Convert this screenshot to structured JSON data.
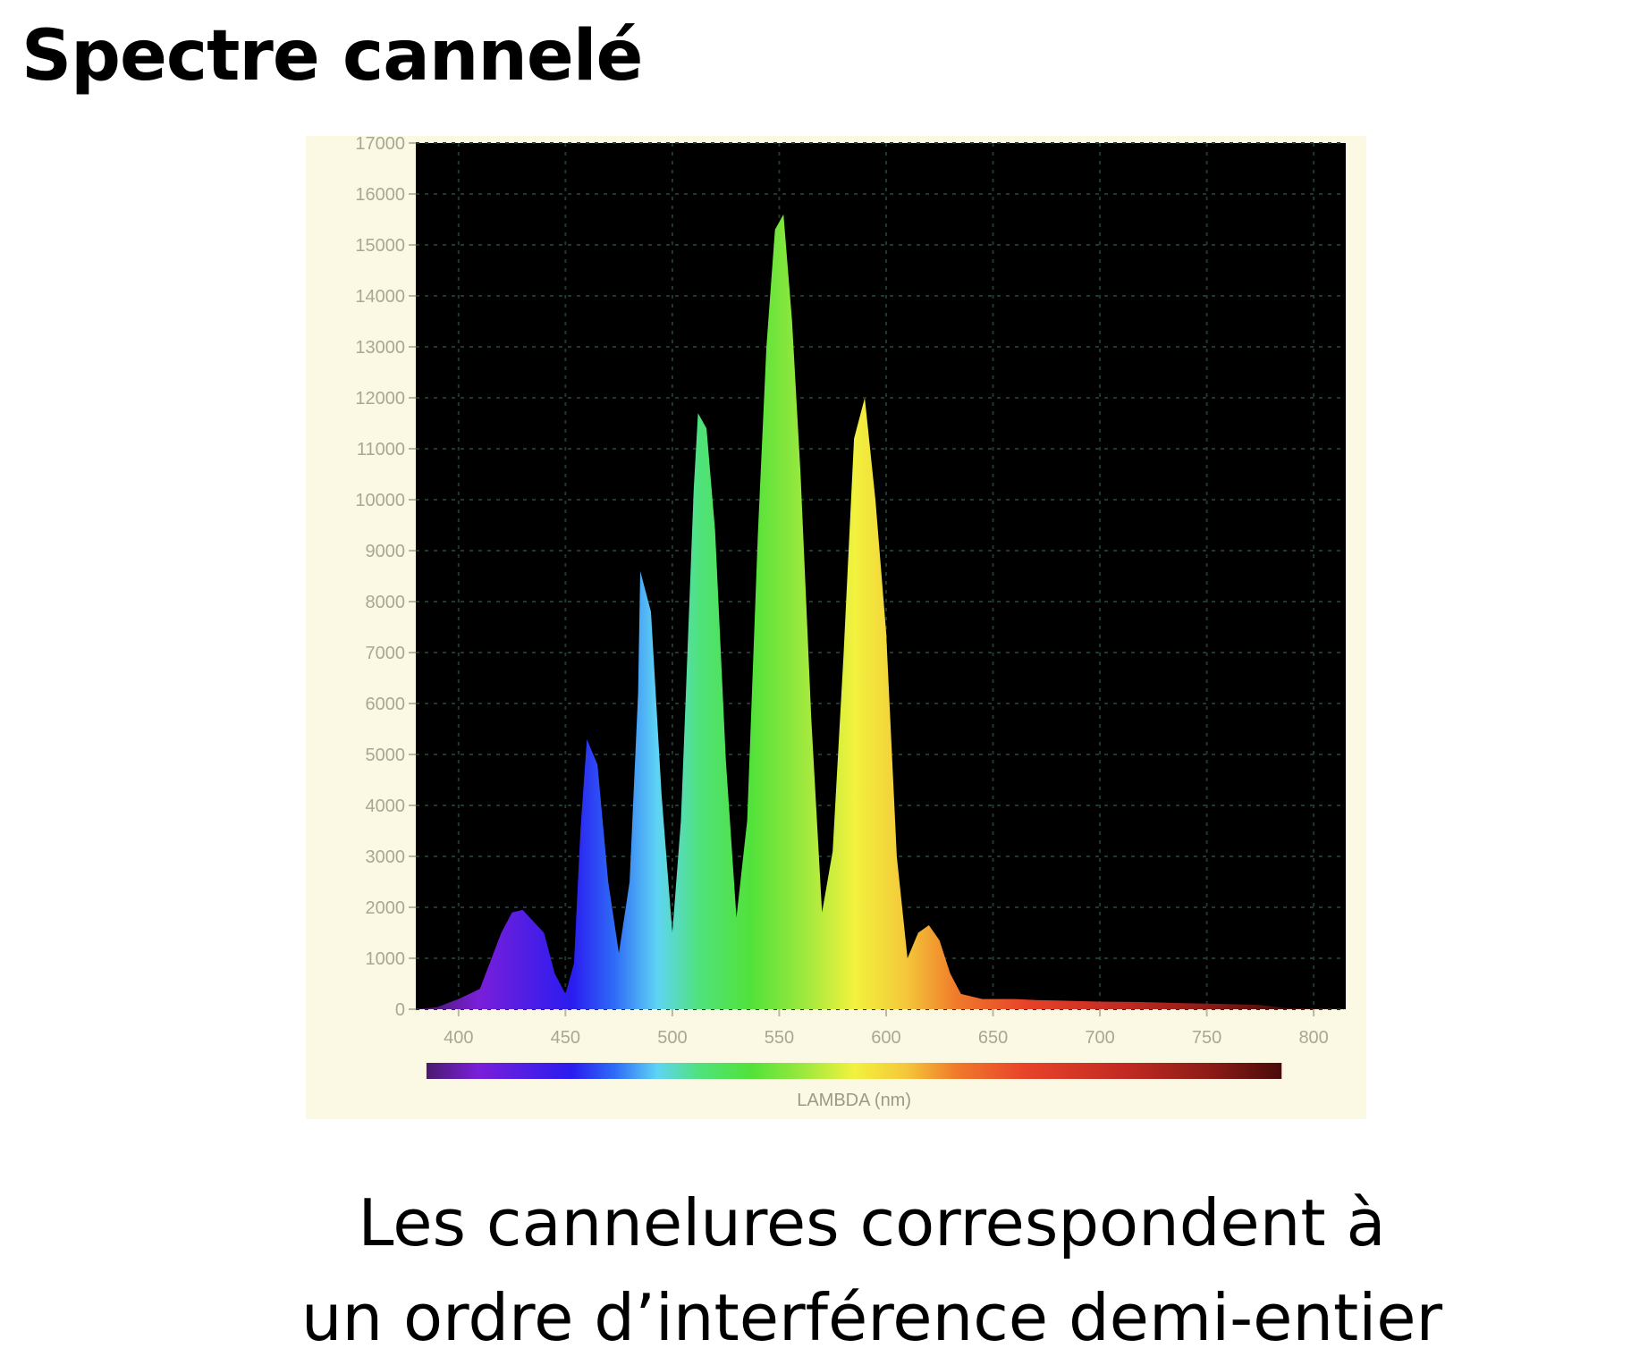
{
  "slide": {
    "title": "Spectre cannelé",
    "caption_line1": "Les cannelures correspondent à",
    "caption_line2": "un ordre d’interférence demi-entier"
  },
  "chart_data": {
    "type": "area",
    "title": "",
    "xlabel": "LAMBDA (nm)",
    "ylabel": "",
    "xlim": [
      380,
      815
    ],
    "ylim": [
      0,
      17000
    ],
    "x_ticks": [
      400,
      450,
      500,
      550,
      600,
      650,
      700,
      750,
      800
    ],
    "y_ticks": [
      0,
      1000,
      2000,
      3000,
      4000,
      5000,
      6000,
      7000,
      8000,
      9000,
      10000,
      11000,
      12000,
      13000,
      14000,
      15000,
      16000,
      17000
    ],
    "grid": true,
    "background_color": "#000000",
    "panel_color": "#fbf9e4",
    "colorbar": true,
    "colorbar_range": [
      385,
      785
    ],
    "series": [
      {
        "x": [
          380,
          390,
          400,
          410,
          420,
          425,
          430,
          440,
          445,
          450,
          454,
          457,
          460,
          465,
          470,
          475,
          480,
          484,
          485,
          490,
          495,
          500,
          504,
          508,
          510,
          512,
          516,
          520,
          525,
          530,
          535,
          540,
          544,
          548,
          552,
          556,
          560,
          565,
          570,
          575,
          580,
          585,
          590,
          595,
          600,
          605,
          610,
          615,
          620,
          625,
          630,
          635,
          640,
          645,
          650,
          655,
          660,
          670,
          680,
          690,
          700,
          720,
          740,
          760,
          770,
          775,
          780,
          785,
          790,
          800,
          815
        ],
        "y": [
          0,
          40,
          200,
          400,
          1500,
          1900,
          1950,
          1500,
          700,
          300,
          900,
          3500,
          5300,
          4800,
          2500,
          1100,
          2500,
          6200,
          8600,
          7800,
          4200,
          1500,
          3700,
          8000,
          10200,
          11700,
          11400,
          9400,
          4900,
          1800,
          3700,
          9300,
          13000,
          15300,
          15600,
          13500,
          10500,
          5700,
          1900,
          3100,
          6900,
          11200,
          12000,
          10000,
          7400,
          3000,
          1000,
          1500,
          1650,
          1350,
          700,
          300,
          250,
          200,
          200,
          200,
          200,
          180,
          170,
          160,
          150,
          140,
          120,
          100,
          90,
          80,
          60,
          30,
          20,
          10,
          0
        ]
      }
    ]
  }
}
